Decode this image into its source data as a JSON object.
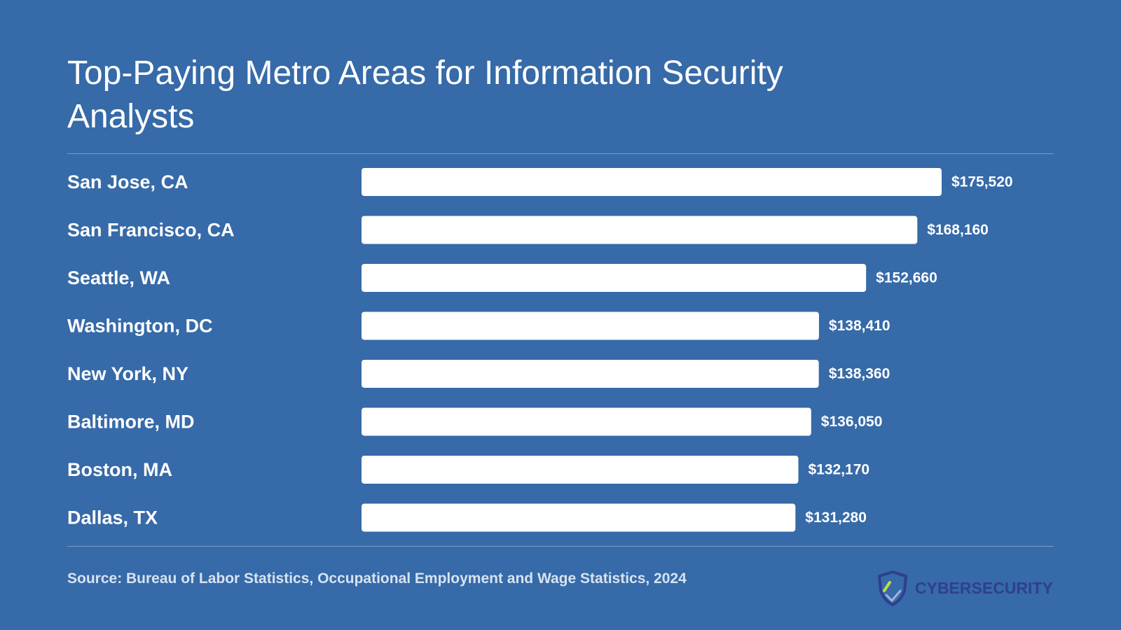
{
  "chart_data": {
    "type": "bar",
    "orientation": "horizontal",
    "title": "Top-Paying Metro Areas for Information Security Analysts",
    "categories": [
      "San Jose, CA",
      "San Francisco, CA",
      "Seattle, WA",
      "Washington, DC",
      "New York, NY",
      "Baltimore, MD",
      "Boston, MA",
      "Dallas, TX"
    ],
    "values": [
      175520,
      168160,
      152660,
      138410,
      138360,
      136050,
      132170,
      131280
    ],
    "value_labels": [
      "$175,520",
      "$168,160",
      "$152,660",
      "$138,410",
      "$138,360",
      "$136,050",
      "$132,170",
      "$131,280"
    ],
    "xlabel": "",
    "ylabel": "",
    "grid": false,
    "legend": "none",
    "bar_color": "#ffffff"
  },
  "source": "Source: Bureau of Labor Statistics, Occupational Employment and Wage Statistics, 2024",
  "brand": {
    "name": "CYBERSECURITY",
    "logo_icon": "shield-icon"
  },
  "colors": {
    "background": "#366aa8",
    "bar": "#ffffff",
    "brand_text": "#2f3f8f",
    "brand_accent": "#c6d84a"
  }
}
